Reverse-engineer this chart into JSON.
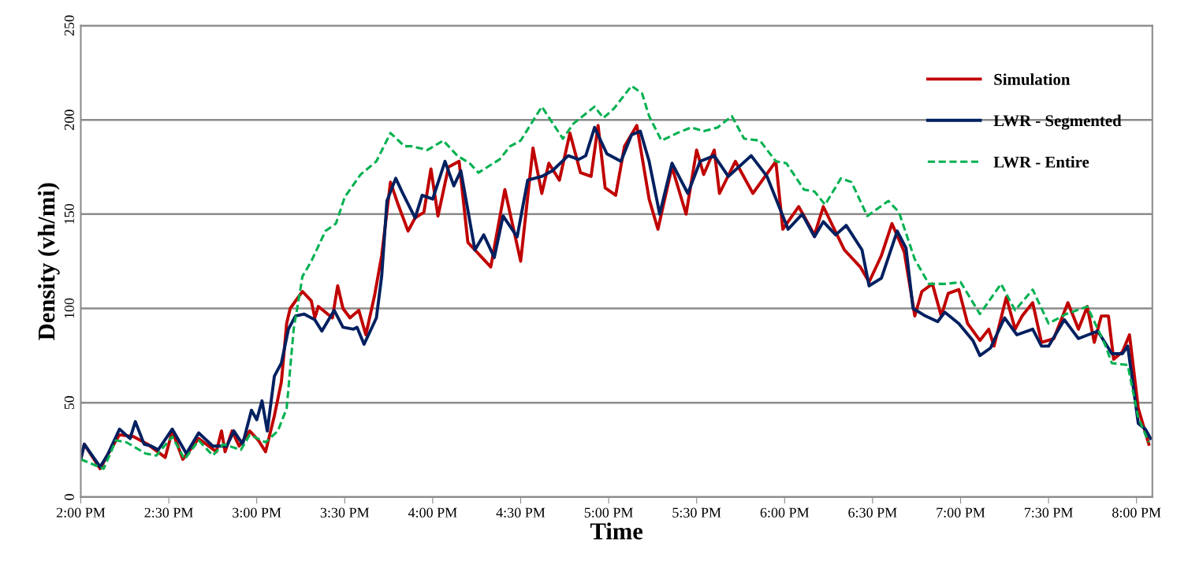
{
  "chart_data": {
    "type": "line",
    "xlabel": "Time",
    "ylabel": "Density (vh/mi)",
    "xlim": [
      14,
      20.09
    ],
    "ylim": [
      0,
      250
    ],
    "xticks": [
      {
        "value": 14,
        "label": "2:00 PM"
      },
      {
        "value": 14.5,
        "label": "2:30 PM"
      },
      {
        "value": 15,
        "label": "3:00 PM"
      },
      {
        "value": 15.5,
        "label": "3:30 PM"
      },
      {
        "value": 16,
        "label": "4:00 PM"
      },
      {
        "value": 16.5,
        "label": "4:30 PM"
      },
      {
        "value": 17,
        "label": "5:00 PM"
      },
      {
        "value": 17.5,
        "label": "5:30 PM"
      },
      {
        "value": 18,
        "label": "6:00 PM"
      },
      {
        "value": 18.5,
        "label": "6:30 PM"
      },
      {
        "value": 19,
        "label": "7:00 PM"
      },
      {
        "value": 19.5,
        "label": "7:30 PM"
      },
      {
        "value": 20,
        "label": "8:00 PM"
      }
    ],
    "yticks": [
      0,
      50,
      100,
      150,
      200,
      250
    ],
    "grid": "y",
    "legend": "top right",
    "marker": "none",
    "series": [
      {
        "name": "Simulation",
        "color": "#c00000",
        "line_style": "solid",
        "x": [
          14.0,
          14.02,
          14.11,
          14.15,
          14.22,
          14.3,
          14.38,
          14.48,
          14.52,
          14.58,
          14.67,
          14.77,
          14.8,
          14.82,
          14.86,
          14.9,
          14.96,
          15.01,
          15.05,
          15.1,
          15.14,
          15.17,
          15.19,
          15.26,
          15.31,
          15.33,
          15.35,
          15.43,
          15.46,
          15.49,
          15.53,
          15.58,
          15.62,
          15.67,
          15.71,
          15.76,
          15.8,
          15.86,
          15.9,
          15.95,
          15.99,
          16.03,
          16.09,
          16.15,
          16.2,
          16.33,
          16.41,
          16.5,
          16.57,
          16.62,
          16.66,
          16.72,
          16.78,
          16.84,
          16.9,
          16.94,
          16.98,
          17.04,
          17.09,
          17.16,
          17.23,
          17.28,
          17.36,
          17.44,
          17.5,
          17.54,
          17.6,
          17.63,
          17.72,
          17.82,
          17.95,
          17.99,
          18.08,
          18.17,
          18.22,
          18.34,
          18.43,
          18.48,
          18.55,
          18.61,
          18.68,
          18.74,
          18.78,
          18.84,
          18.89,
          18.93,
          18.99,
          19.04,
          19.11,
          19.16,
          19.19,
          19.26,
          19.31,
          19.35,
          19.41,
          19.46,
          19.53,
          19.61,
          19.67,
          19.72,
          19.76,
          19.8,
          19.84,
          19.87,
          19.92,
          19.96,
          20.01,
          20.07
        ],
        "values": [
          20,
          28,
          15,
          22,
          33,
          32,
          28,
          21,
          35,
          20,
          31,
          24,
          35,
          24,
          35,
          27,
          35,
          30,
          24,
          43,
          61,
          92,
          100,
          109,
          104,
          95,
          101,
          95,
          112,
          100,
          95,
          99,
          86,
          107,
          128,
          167,
          156,
          141,
          148,
          151,
          174,
          149,
          175,
          178,
          135,
          122,
          163,
          125,
          185,
          161,
          177,
          168,
          193,
          172,
          170,
          197,
          164,
          160,
          186,
          197,
          158,
          142,
          175,
          150,
          184,
          171,
          184,
          161,
          178,
          161,
          178,
          142,
          154,
          139,
          154,
          131,
          122,
          114,
          128,
          145,
          130,
          96,
          109,
          113,
          96,
          108,
          110,
          92,
          83,
          89,
          80,
          106,
          89,
          96,
          103,
          82,
          84,
          103,
          89,
          101,
          82,
          96,
          96,
          73,
          77,
          86,
          47,
          28
        ]
      },
      {
        "name": "LWR - Segmented",
        "color": "#002060",
        "line_style": "solid",
        "x": [
          14.0,
          14.02,
          14.11,
          14.15,
          14.22,
          14.28,
          14.31,
          14.36,
          14.4,
          14.44,
          14.52,
          14.6,
          14.67,
          14.75,
          14.83,
          14.87,
          14.92,
          14.97,
          15.0,
          15.03,
          15.06,
          15.1,
          15.14,
          15.18,
          15.22,
          15.27,
          15.33,
          15.37,
          15.44,
          15.49,
          15.55,
          15.57,
          15.61,
          15.68,
          15.71,
          15.74,
          15.79,
          15.83,
          15.9,
          15.94,
          16.0,
          16.07,
          16.12,
          16.16,
          16.24,
          16.29,
          16.35,
          16.4,
          16.48,
          16.54,
          16.62,
          16.68,
          16.77,
          16.83,
          16.87,
          16.92,
          16.99,
          17.07,
          17.13,
          17.18,
          17.23,
          17.29,
          17.36,
          17.45,
          17.52,
          17.6,
          17.68,
          17.81,
          17.9,
          18.02,
          18.1,
          18.17,
          18.22,
          18.29,
          18.35,
          18.44,
          18.48,
          18.55,
          18.64,
          18.69,
          18.73,
          18.8,
          18.87,
          18.91,
          18.99,
          19.07,
          19.11,
          19.17,
          19.25,
          19.32,
          19.41,
          19.46,
          19.5,
          19.59,
          19.67,
          19.78,
          19.86,
          19.92,
          19.95,
          20.01,
          20.05,
          20.08
        ],
        "values": [
          20,
          28,
          16,
          22,
          36,
          31,
          40,
          28,
          27,
          25,
          36,
          23,
          34,
          27,
          27,
          35,
          28,
          46,
          41,
          51,
          35,
          64,
          71,
          89,
          96,
          97,
          94,
          88,
          99,
          90,
          89,
          90,
          81,
          95,
          117,
          157,
          169,
          161,
          148,
          160,
          158,
          178,
          165,
          173,
          131,
          139,
          127,
          149,
          138,
          168,
          170,
          173,
          181,
          179,
          181,
          196,
          182,
          178,
          192,
          194,
          178,
          150,
          177,
          161,
          178,
          181,
          170,
          181,
          170,
          142,
          150,
          138,
          146,
          139,
          144,
          131,
          112,
          116,
          141,
          132,
          100,
          96,
          93,
          98,
          92,
          83,
          75,
          79,
          95,
          86,
          89,
          80,
          80,
          94,
          84,
          88,
          76,
          76,
          80,
          39,
          36,
          31
        ]
      },
      {
        "name": "LWR - Entire",
        "color": "#00b050",
        "line_style": "dashed",
        "x": [
          14.0,
          14.13,
          14.2,
          14.26,
          14.37,
          14.43,
          14.52,
          14.59,
          14.67,
          14.75,
          14.81,
          14.91,
          14.96,
          15.05,
          15.12,
          15.17,
          15.21,
          15.26,
          15.31,
          15.39,
          15.45,
          15.5,
          15.59,
          15.68,
          15.76,
          15.84,
          15.88,
          15.97,
          16.06,
          16.14,
          16.21,
          16.26,
          16.38,
          16.44,
          16.5,
          16.62,
          16.74,
          16.8,
          16.92,
          16.97,
          17.03,
          17.13,
          17.19,
          17.23,
          17.3,
          17.39,
          17.47,
          17.54,
          17.62,
          17.7,
          17.77,
          17.86,
          17.95,
          18.01,
          18.11,
          18.17,
          18.23,
          18.32,
          18.38,
          18.47,
          18.59,
          18.65,
          18.74,
          18.82,
          18.92,
          19.0,
          19.11,
          19.23,
          19.31,
          19.41,
          19.5,
          19.6,
          19.72,
          19.82,
          19.86,
          19.95,
          20.01,
          20.07
        ],
        "values": [
          20,
          15,
          30,
          29,
          23,
          22,
          32,
          20,
          30,
          22,
          28,
          25,
          33,
          29,
          35,
          47,
          89,
          117,
          125,
          141,
          145,
          159,
          171,
          178,
          193,
          186,
          186,
          184,
          189,
          181,
          177,
          172,
          179,
          186,
          189,
          207,
          190,
          198,
          207,
          201,
          206,
          218,
          214,
          202,
          189,
          193,
          196,
          194,
          196,
          202,
          190,
          189,
          178,
          177,
          163,
          162,
          155,
          169,
          167,
          149,
          157,
          151,
          126,
          113,
          113,
          114,
          97,
          113,
          99,
          110,
          92,
          97,
          101,
          81,
          71,
          70,
          42,
          29
        ]
      }
    ]
  }
}
